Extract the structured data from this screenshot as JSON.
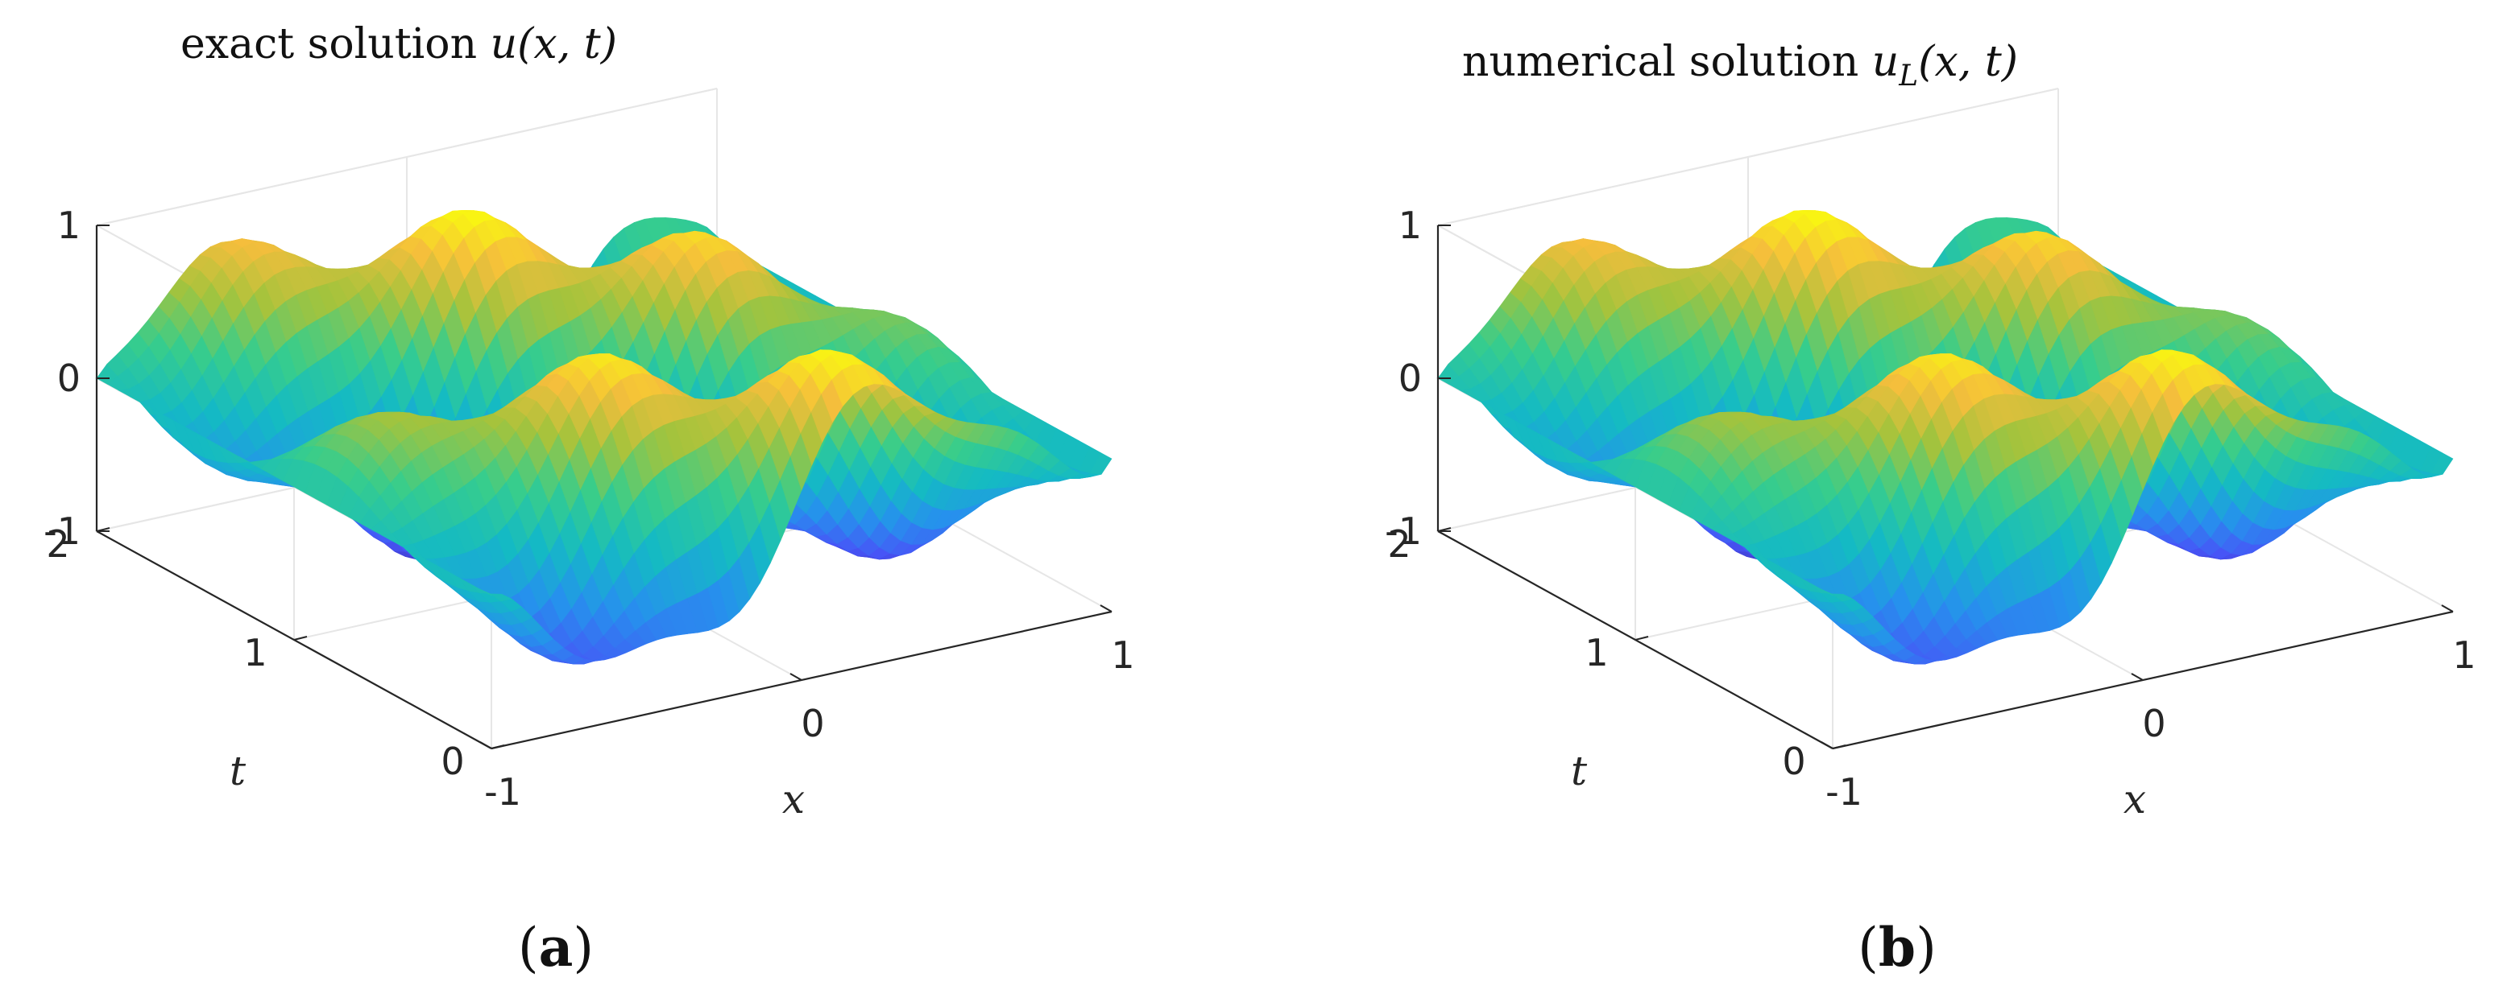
{
  "chart_data": [
    {
      "type": "surface",
      "panel_label": "a",
      "title_text": "exact solution ",
      "title_symbol": "u",
      "title_subscript": "",
      "title_args": "(x, t)",
      "xlabel": "x",
      "ylabel": "t",
      "zlabel": "",
      "xlim": [
        -1,
        1
      ],
      "ylim": [
        0,
        2
      ],
      "zlim": [
        -1,
        1
      ],
      "x_ticks": [
        -1,
        0,
        1
      ],
      "y_ticks": [
        0,
        1,
        2
      ],
      "z_ticks": [
        -1,
        0,
        1
      ],
      "x_tick_labels": [
        "-1",
        "0",
        "1"
      ],
      "y_tick_labels": [
        "0",
        "1",
        "2"
      ],
      "z_tick_labels": [
        "-1",
        "0",
        "1"
      ],
      "colormap": "parula",
      "grid": true,
      "function": "oscillating wave in x and t, amplitude up to 1, minima near -1",
      "sample_grid": {
        "x": [
          -1,
          -0.5,
          0,
          0.5,
          1
        ],
        "t": [
          0,
          0.5,
          1,
          1.5,
          2
        ]
      }
    },
    {
      "type": "surface",
      "panel_label": "b",
      "title_text": "numerical solution ",
      "title_symbol": "u",
      "title_subscript": "L",
      "title_args": "(x, t)",
      "xlabel": "x",
      "ylabel": "t",
      "zlabel": "",
      "xlim": [
        -1,
        1
      ],
      "ylim": [
        0,
        2
      ],
      "zlim": [
        -1,
        1
      ],
      "x_ticks": [
        -1,
        0,
        1
      ],
      "y_ticks": [
        0,
        1,
        2
      ],
      "z_ticks": [
        -1,
        0,
        1
      ],
      "x_tick_labels": [
        "-1",
        "0",
        "1"
      ],
      "y_tick_labels": [
        "0",
        "1",
        "2"
      ],
      "z_tick_labels": [
        "-1",
        "0",
        "1"
      ],
      "colormap": "parula",
      "grid": true,
      "function": "oscillating wave in x and t, amplitude up to 1, minima near -1",
      "sample_grid": {
        "x": [
          -1,
          -0.5,
          0,
          0.5,
          1
        ],
        "t": [
          0,
          0.5,
          1,
          1.5,
          2
        ]
      }
    }
  ],
  "colors": {
    "axis": "#262626",
    "grid": "#e6e6e6",
    "parula_low": "#3e26a8",
    "parula_mid": "#13beb7",
    "parula_high": "#f9fb0e"
  }
}
